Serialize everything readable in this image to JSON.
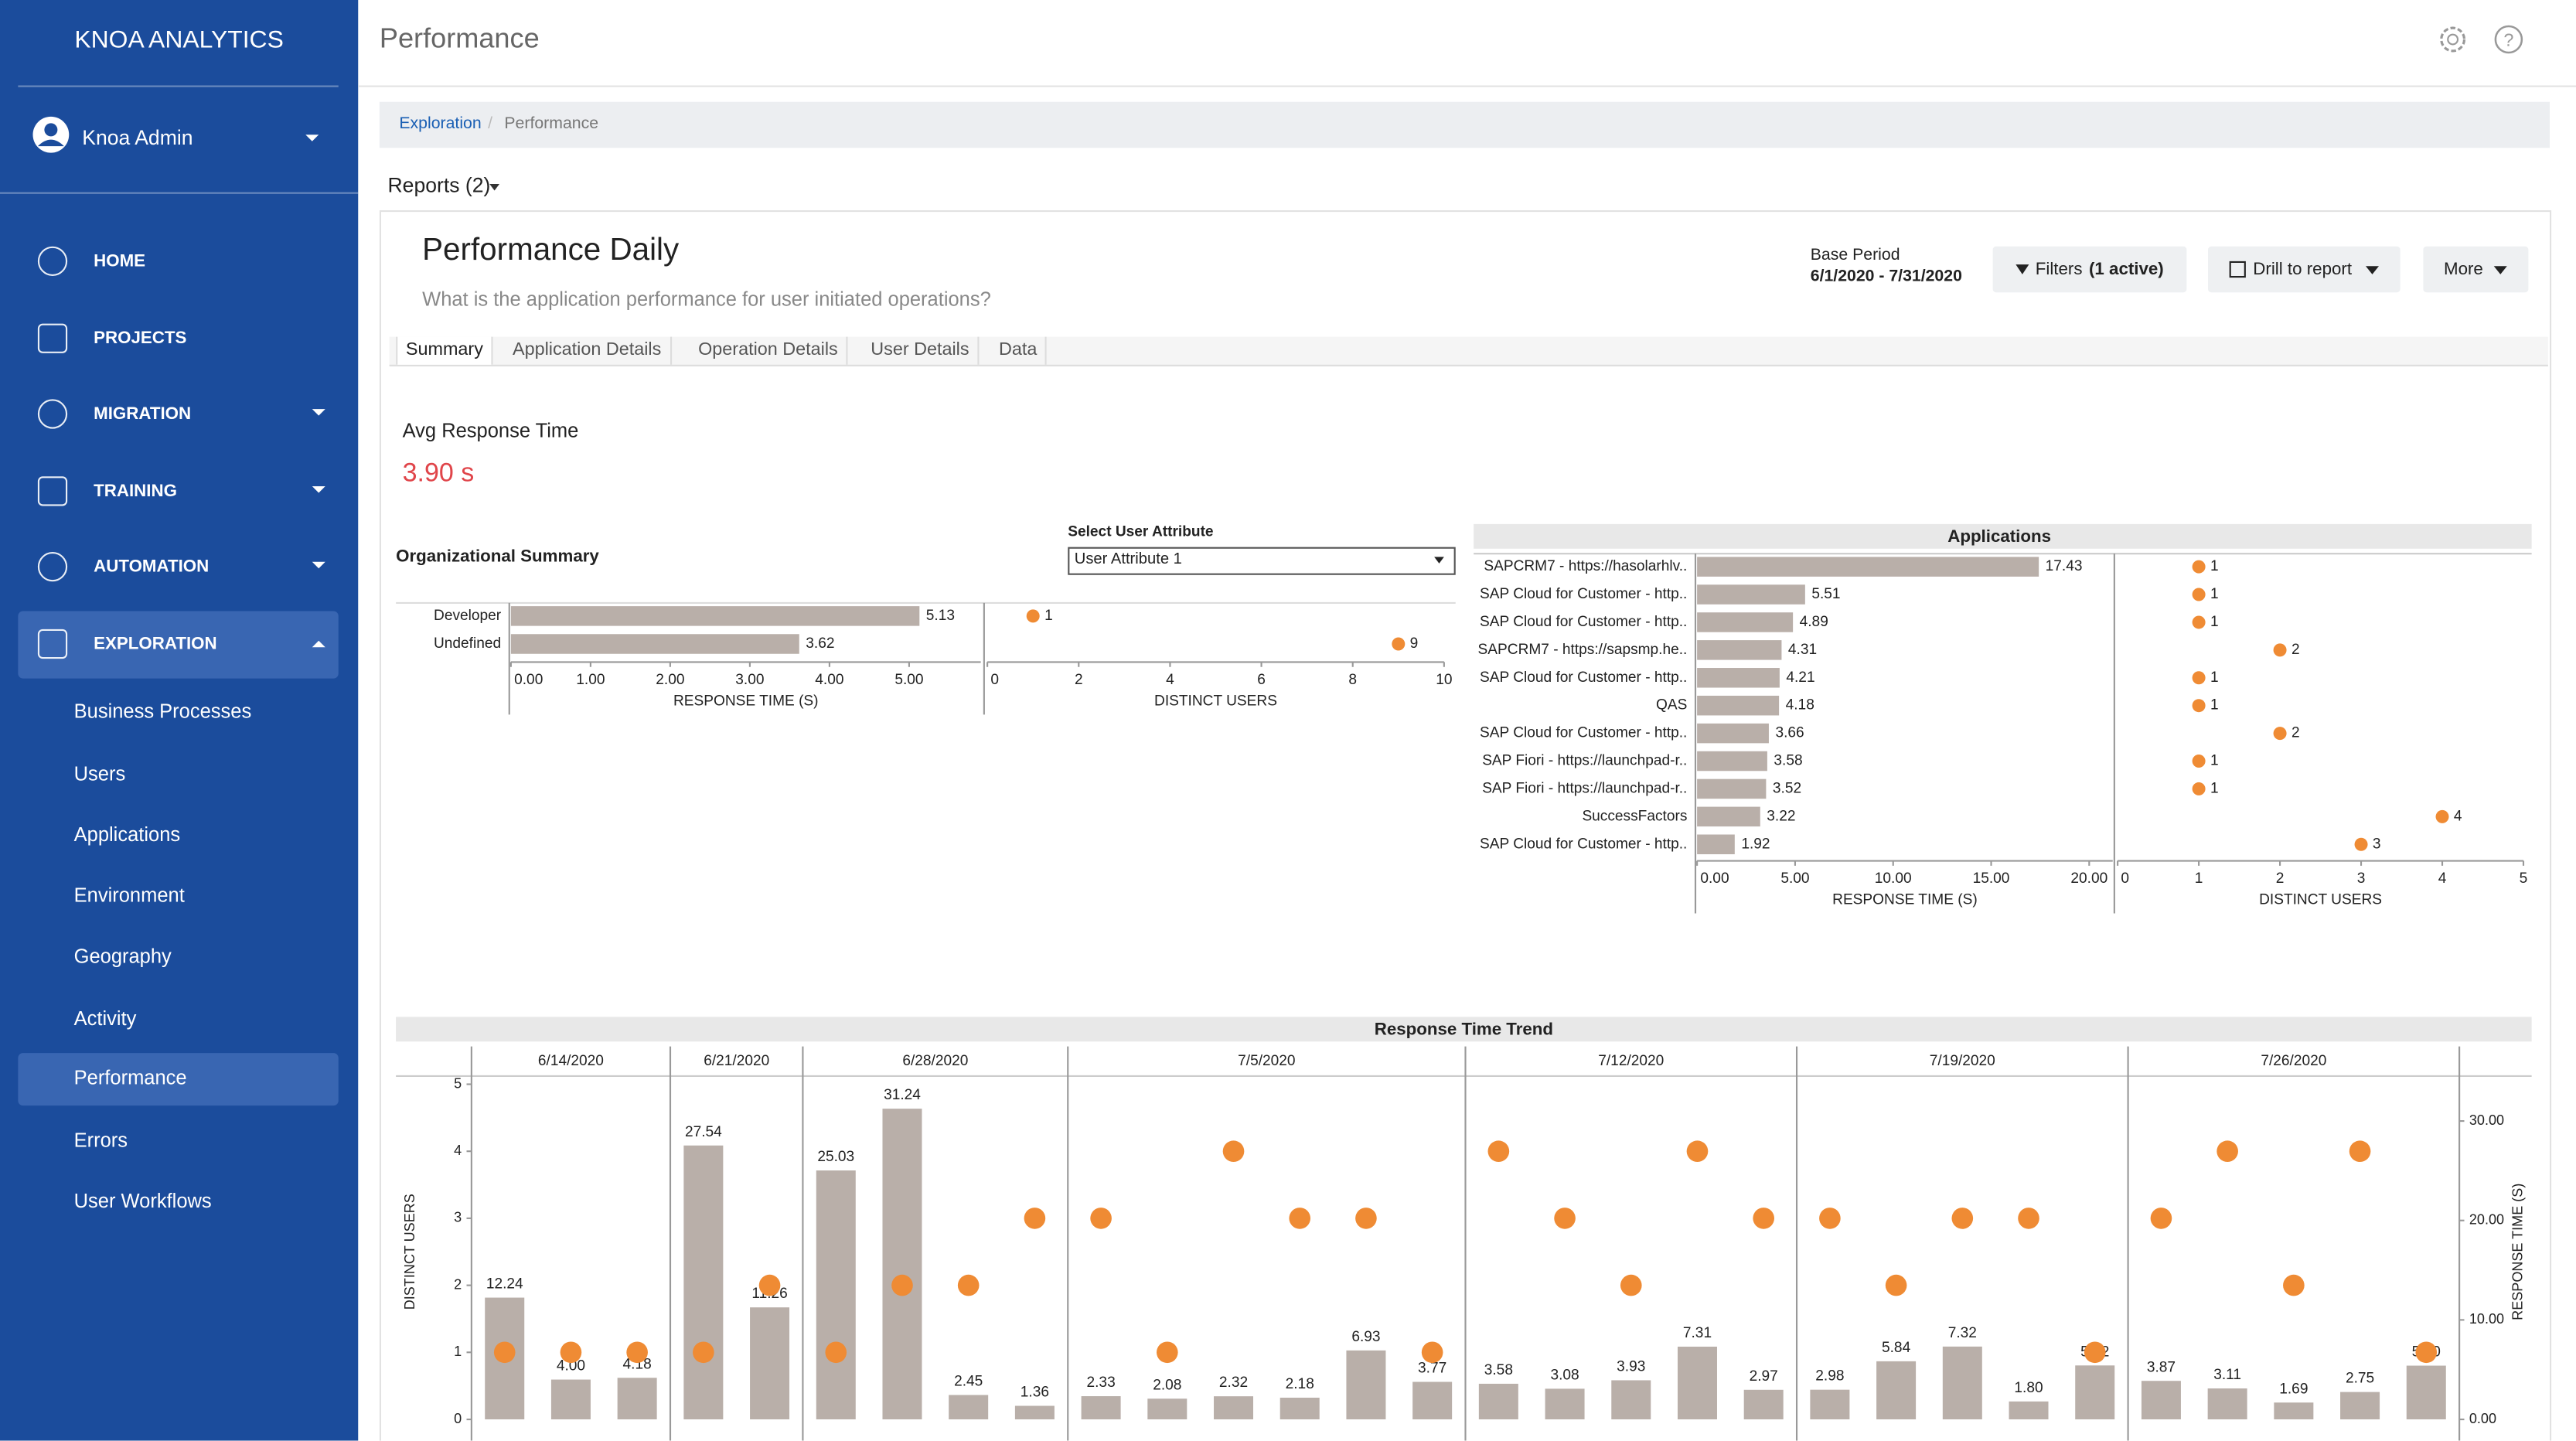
{
  "sidebar": {
    "brand": "KNOA ANALYTICS",
    "user": "Knoa Admin",
    "nav": [
      "HOME",
      "PROJECTS",
      "MIGRATION",
      "TRAINING",
      "AUTOMATION",
      "EXPLORATION"
    ],
    "subnav": [
      "Business Processes",
      "Users",
      "Applications",
      "Environment",
      "Geography",
      "Activity",
      "Performance",
      "Errors",
      "User Workflows"
    ]
  },
  "header": {
    "title": "Performance"
  },
  "breadcrumb": [
    "Exploration",
    "Performance"
  ],
  "reports": "Reports (2)",
  "report": {
    "title": "Performance Daily",
    "subtitle": "What is the application performance for user initiated operations?",
    "base_period_label": "Base Period",
    "base_period": "6/1/2020 - 7/31/2020",
    "filters_label": "Filters",
    "filters_count": "(1 active)",
    "drill": "Drill to report",
    "more": "More",
    "tabs": [
      "Summary",
      "Application Details",
      "Operation Details",
      "User Details",
      "Data"
    ],
    "kpi_label": "Avg Response Time",
    "kpi_value": "3.90 s"
  },
  "org_summary": {
    "type": "bar",
    "title": "Organizational Summary",
    "select_label": "Select User Attribute",
    "select_value": "User Attribute 1",
    "categories": [
      "Developer",
      "Undefined"
    ],
    "response_time": {
      "values": [
        5.13,
        3.62
      ],
      "xlim": [
        0,
        5.9
      ],
      "xticks": [
        {
          "value": 0,
          "label": "0.00"
        },
        {
          "value": 1,
          "label": "1.00"
        },
        {
          "value": 2,
          "label": "2.00"
        },
        {
          "value": 3,
          "label": "3.00"
        },
        {
          "value": 4,
          "label": "4.00"
        },
        {
          "value": 5,
          "label": "5.00"
        }
      ],
      "xlabel": "RESPONSE TIME (S)",
      "color": "#b9afa9"
    },
    "distinct_users": {
      "values": [
        1,
        9
      ],
      "xlim": [
        0,
        10
      ],
      "xticks": [
        0,
        2,
        4,
        6,
        8,
        10
      ],
      "xlabel": "DISTINCT USERS",
      "color": "#ef8b34"
    }
  },
  "applications": {
    "type": "bar",
    "title": "Applications",
    "categories": [
      "SAPCRM7 - https://hasolarhlv..",
      "SAP Cloud for Customer - http..",
      "SAP Cloud for Customer - http..",
      "SAPCRM7 - https://sapsmp.he..",
      "SAP Cloud for Customer - http..",
      "QAS",
      "SAP Cloud for Customer - http..",
      "SAP Fiori - https://launchpad-r..",
      "SAP Fiori - https://launchpad-r..",
      "SuccessFactors",
      "SAP Cloud for Customer - http.."
    ],
    "response_time": {
      "values": [
        17.43,
        5.51,
        4.89,
        4.31,
        4.21,
        4.18,
        3.66,
        3.58,
        3.52,
        3.22,
        1.92
      ],
      "xlim": [
        0,
        21.2
      ],
      "xticks": [
        {
          "value": 0,
          "label": "0.00"
        },
        {
          "value": 5,
          "label": "5.00"
        },
        {
          "value": 10,
          "label": "10.00"
        },
        {
          "value": 15,
          "label": "15.00"
        },
        {
          "value": 20,
          "label": "20.00"
        }
      ],
      "xlabel": "RESPONSE TIME (S)",
      "color": "#b9afa9"
    },
    "distinct_users": {
      "values": [
        1,
        1,
        1,
        2,
        1,
        1,
        2,
        1,
        1,
        4,
        3
      ],
      "xlim": [
        0,
        5
      ],
      "xticks": [
        0,
        1,
        2,
        3,
        4,
        5
      ],
      "xlabel": "DISTINCT USERS",
      "color": "#ef8b34"
    }
  },
  "trend": {
    "type": "bar",
    "title": "Response Time Trend",
    "ylabel": "DISTINCT USERS",
    "y2label": "RESPONSE TIME (S)",
    "ylim": [
      0,
      5
    ],
    "yticks": [
      0,
      1,
      2,
      3,
      4,
      5
    ],
    "y2lim": [
      0,
      33.7
    ],
    "y2ticks": [
      {
        "value": 0,
        "label": "0.00"
      },
      {
        "value": 10,
        "label": "10.00"
      },
      {
        "value": 20,
        "label": "20.00"
      },
      {
        "value": 30,
        "label": "30.00"
      }
    ],
    "bar_color": "#b9afa9",
    "dot_color": "#ef8b34",
    "weeks": [
      {
        "label": "6/14/2020",
        "response_time": [
          12.24,
          4.0,
          4.18
        ],
        "value_labels": [
          "12.24",
          "4.00",
          "4.18"
        ],
        "distinct_users": [
          1,
          1,
          1
        ]
      },
      {
        "label": "6/21/2020",
        "response_time": [
          27.54,
          11.26
        ],
        "value_labels": [
          "27.54",
          "11.26"
        ],
        "distinct_users": [
          1,
          2
        ]
      },
      {
        "label": "6/28/2020",
        "response_time": [
          25.03,
          31.24,
          2.45,
          1.36
        ],
        "value_labels": [
          "25.03",
          "31.24",
          "2.45",
          "1.36"
        ],
        "distinct_users": [
          1,
          2,
          2,
          3
        ]
      },
      {
        "label": "7/5/2020",
        "response_time": [
          2.33,
          2.08,
          2.32,
          2.18,
          6.93,
          3.77
        ],
        "value_labels": [
          "2.33",
          "2.08",
          "2.32",
          "2.18",
          "6.93",
          "3.77"
        ],
        "distinct_users": [
          3,
          1,
          4,
          3,
          3,
          1
        ]
      },
      {
        "label": "7/12/2020",
        "response_time": [
          3.58,
          3.08,
          3.93,
          7.31,
          2.97
        ],
        "value_labels": [
          "3.58",
          "3.08",
          "3.93",
          "7.31",
          "2.97"
        ],
        "distinct_users": [
          4,
          3,
          2,
          4,
          3
        ]
      },
      {
        "label": "7/19/2020",
        "response_time": [
          2.98,
          5.84,
          7.32,
          1.8,
          5.42
        ],
        "value_labels": [
          "2.98",
          "5.84",
          "7.32",
          "1.80",
          "5.42"
        ],
        "distinct_users": [
          3,
          2,
          3,
          3,
          1
        ]
      },
      {
        "label": "7/26/2020",
        "response_time": [
          3.87,
          3.11,
          1.69,
          2.75,
          5.4
        ],
        "value_labels": [
          "3.87",
          "3.11",
          "1.69",
          "2.75",
          "5.40"
        ],
        "distinct_users": [
          3,
          4,
          2,
          4,
          1
        ]
      }
    ]
  }
}
